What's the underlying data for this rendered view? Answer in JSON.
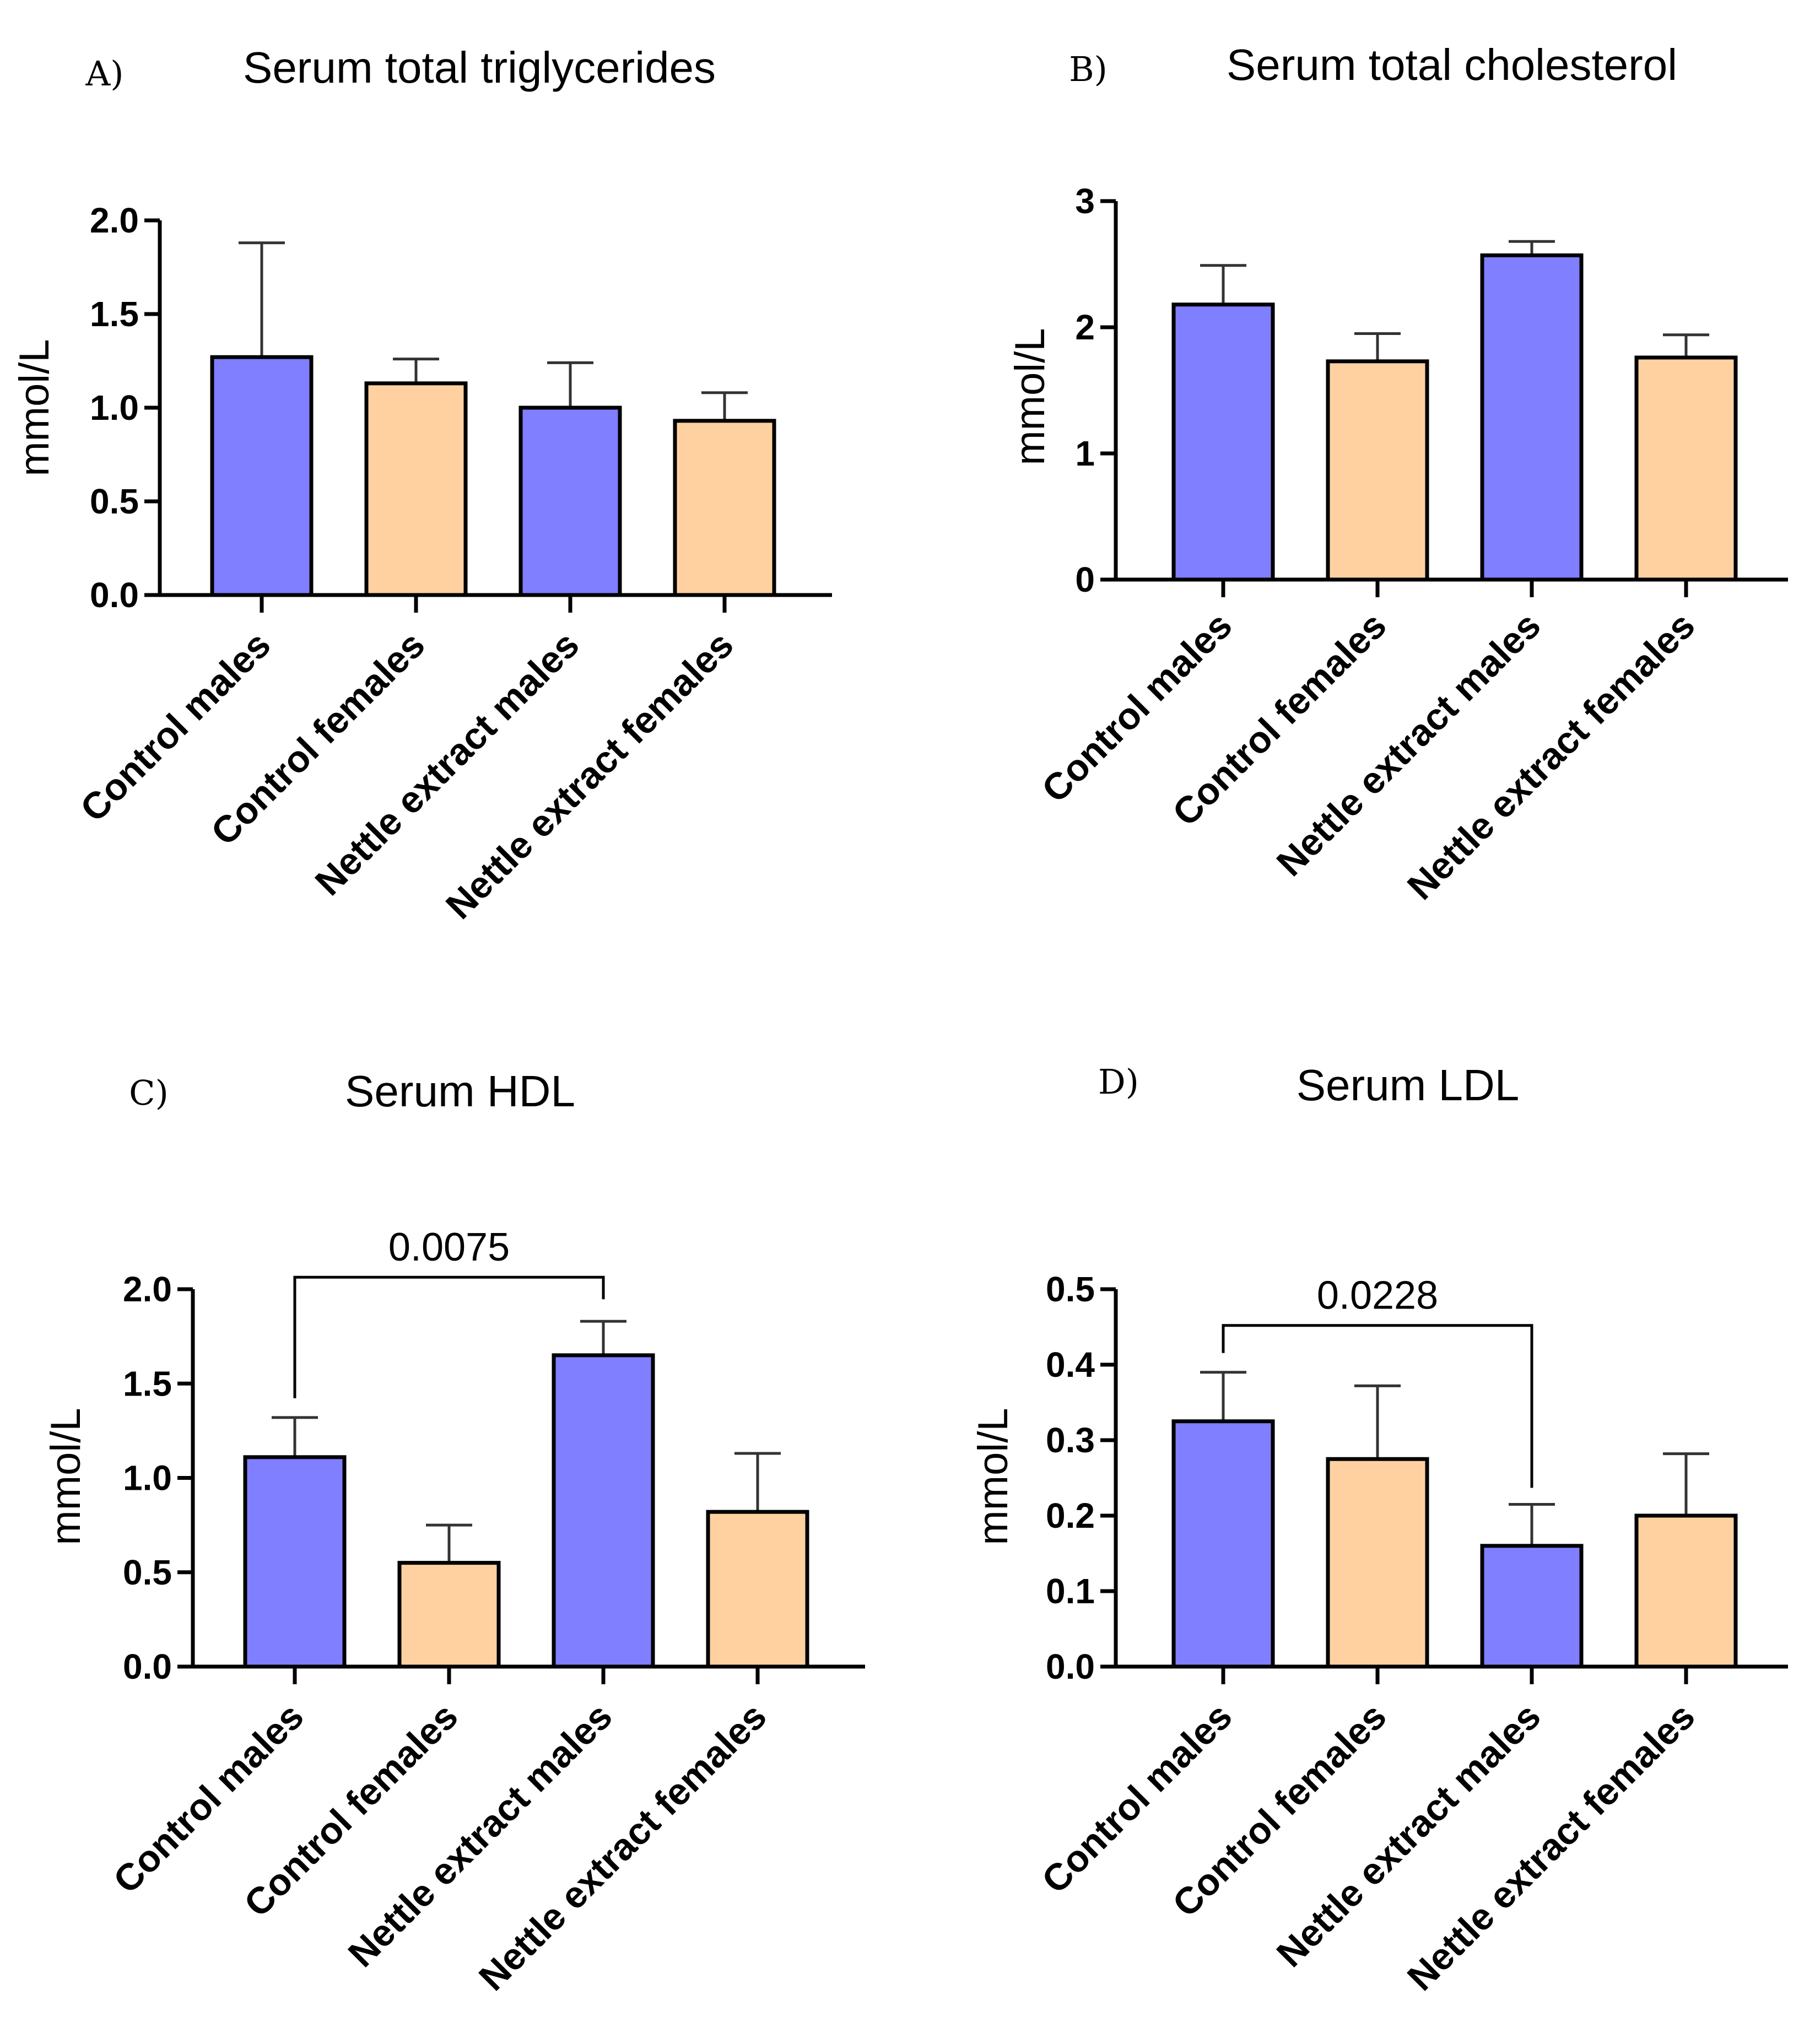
{
  "colors": {
    "male": "#7f7fff",
    "female": "#ffd1a0",
    "axis": "#000000",
    "error_bar": "#333333"
  },
  "chart_data": [
    {
      "type": "bar",
      "panel": "A)",
      "title": "Serum total triglycerides",
      "ylabel": "mmol/L",
      "ylim": [
        0,
        2.0
      ],
      "yticks": [
        0.0,
        0.5,
        1.0,
        1.5,
        2.0
      ],
      "ytick_labels": [
        "0.0",
        "0.5",
        "1.0",
        "1.5",
        "2.0"
      ],
      "categories": [
        "Control males",
        "Control females",
        "Nettle extract males",
        "Nettle extract females"
      ],
      "values": [
        1.27,
        1.13,
        1.0,
        0.93
      ],
      "errors": [
        0.61,
        0.13,
        0.24,
        0.15
      ],
      "significance": null
    },
    {
      "type": "bar",
      "panel": "B)",
      "title": "Serum total cholesterol",
      "ylabel": "mmol/L",
      "ylim": [
        0,
        3
      ],
      "yticks": [
        0,
        1,
        2,
        3
      ],
      "ytick_labels": [
        "0",
        "1",
        "2",
        "3"
      ],
      "categories": [
        "Control males",
        "Control females",
        "Nettle extract males",
        "Nettle extract females"
      ],
      "values": [
        2.18,
        1.73,
        2.57,
        1.76
      ],
      "errors": [
        0.31,
        0.22,
        0.11,
        0.18
      ],
      "significance": null
    },
    {
      "type": "bar",
      "panel": "C)",
      "title": "Serum HDL",
      "ylabel": "mmol/L",
      "ylim": [
        0,
        2.0
      ],
      "yticks": [
        0.0,
        0.5,
        1.0,
        1.5,
        2.0
      ],
      "ytick_labels": [
        "0.0",
        "0.5",
        "1.0",
        "1.5",
        "2.0"
      ],
      "categories": [
        "Control males",
        "Control females",
        "Nettle extract males",
        "Nettle extract females"
      ],
      "values": [
        1.11,
        0.55,
        1.65,
        0.82
      ],
      "errors": [
        0.21,
        0.2,
        0.18,
        0.31
      ],
      "significance": {
        "from": 0,
        "to": 2,
        "label": "0.0075"
      }
    },
    {
      "type": "bar",
      "panel": "D)",
      "title": "Serum LDL",
      "ylabel": "mmol/L",
      "ylim": [
        0,
        0.5
      ],
      "yticks": [
        0.0,
        0.1,
        0.2,
        0.3,
        0.4,
        0.5
      ],
      "ytick_labels": [
        "0.0",
        "0.1",
        "0.2",
        "0.3",
        "0.4",
        "0.5"
      ],
      "categories": [
        "Control males",
        "Control females",
        "Nettle extract males",
        "Nettle extract females"
      ],
      "values": [
        0.325,
        0.275,
        0.16,
        0.2
      ],
      "errors": [
        0.065,
        0.097,
        0.055,
        0.082
      ],
      "significance": {
        "from": 0,
        "to": 2,
        "label": "0.0228"
      }
    }
  ]
}
